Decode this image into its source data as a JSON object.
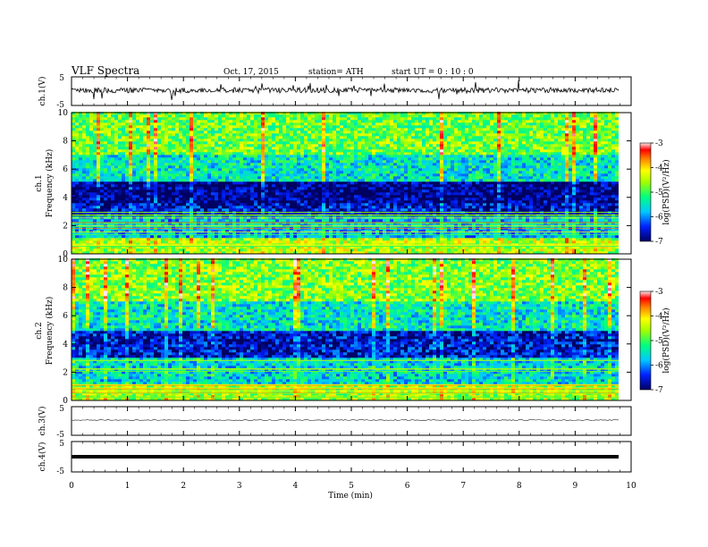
{
  "header": {
    "title": "VLF  Spectra",
    "date": "Oct. 17, 2015",
    "station": "station= ATH",
    "start": "start  UT =   0  : 10 : 0"
  },
  "chart_data": [
    {
      "type": "line",
      "panel": "ch1-waveform",
      "ylabel": "ch.1(V)",
      "y_tick_labels": [
        "5",
        "-5"
      ],
      "ylim": [
        -5,
        5
      ],
      "x": [
        0,
        9.8
      ],
      "values": [
        0,
        0
      ]
    },
    {
      "type": "heatmap",
      "panel": "ch1-spectrogram",
      "ylabel": [
        "ch.1",
        "Frequency  (kHz)"
      ],
      "y_tick_labels": [
        "0",
        "2",
        "4",
        "6",
        "8",
        "10"
      ],
      "ylim": [
        0,
        10
      ],
      "xlim": [
        0,
        10
      ],
      "colorbar": {
        "label": "log(PSD)(V²/Hz)",
        "tick_labels": [
          "-3",
          "-4",
          "-5",
          "-6",
          "-7"
        ],
        "range": [
          -7,
          -3
        ]
      },
      "bands_khz": [
        {
          "from": 0,
          "to": 1.0,
          "level": -4.5
        },
        {
          "from": 1.0,
          "to": 2.5,
          "level": -5.8
        },
        {
          "from": 2.5,
          "to": 3.5,
          "level": -6.6
        },
        {
          "from": 3.5,
          "to": 5.0,
          "level": -6.9
        },
        {
          "from": 5.0,
          "to": 7.0,
          "level": -5.5
        },
        {
          "from": 7.0,
          "to": 10.0,
          "level": -4.8
        }
      ]
    },
    {
      "type": "heatmap",
      "panel": "ch2-spectrogram",
      "ylabel": [
        "ch.2",
        "Frequency  (kHz)"
      ],
      "y_tick_labels": [
        "0",
        "2",
        "4",
        "6",
        "8",
        "10"
      ],
      "ylim": [
        0,
        10
      ],
      "xlim": [
        0,
        10
      ],
      "colorbar": {
        "label": "log(PSD)(V²/Hz)",
        "tick_labels": [
          "-3",
          "-4",
          "-5",
          "-6",
          "-7"
        ],
        "range": [
          -7,
          -3
        ]
      },
      "bands_khz": [
        {
          "from": 0,
          "to": 1.0,
          "level": -4.6
        },
        {
          "from": 1.0,
          "to": 3.0,
          "level": -5.6
        },
        {
          "from": 3.0,
          "to": 4.8,
          "level": -6.6
        },
        {
          "from": 4.8,
          "to": 7.0,
          "level": -5.5
        },
        {
          "from": 7.0,
          "to": 10.0,
          "level": -4.7
        }
      ]
    },
    {
      "type": "line",
      "panel": "ch3-waveform",
      "ylabel": "ch.3(V)",
      "y_tick_labels": [
        "5",
        "-5"
      ],
      "ylim": [
        -5,
        5
      ],
      "x": [
        0,
        9.8
      ],
      "values": [
        0,
        0
      ]
    },
    {
      "type": "line",
      "panel": "ch4-waveform",
      "ylabel": "ch.4(V)",
      "y_tick_labels": [
        "5",
        "-5"
      ],
      "ylim": [
        -5,
        5
      ],
      "x": [
        0,
        9.8
      ],
      "values": [
        0,
        0
      ]
    }
  ],
  "x_axis": {
    "label": "Time  (min)",
    "tick_labels": [
      "0",
      "1",
      "2",
      "3",
      "4",
      "5",
      "6",
      "7",
      "8",
      "9",
      "10"
    ],
    "range": [
      0,
      10
    ]
  },
  "colors": {
    "low": "#000080",
    "mid_low": "#0050ff",
    "mid": "#00e0ff",
    "mid_high": "#30ff30",
    "high": "#ffff00",
    "max": "#ff0000",
    "very_max": "#ffe0e0"
  }
}
